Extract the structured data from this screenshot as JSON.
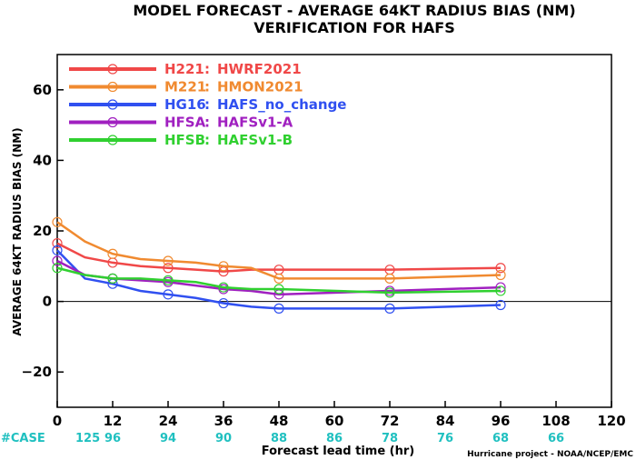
{
  "chart_data": {
    "type": "line",
    "title": "MODEL FORECAST - AVERAGE 64KT RADIUS BIAS (NM)",
    "subtitle": "VERIFICATION FOR HAFS",
    "xlabel": "Forecast lead time (hr)",
    "ylabel": "AVERAGE 64KT RADIUS BIAS (NM)",
    "xlim": [
      0,
      120
    ],
    "ylim": [
      -30,
      70
    ],
    "x_ticks": [
      "0",
      "12",
      "24",
      "36",
      "48",
      "60",
      "72",
      "84",
      "96",
      "108",
      "120"
    ],
    "x_tick_values": [
      0,
      12,
      24,
      36,
      48,
      60,
      72,
      84,
      96,
      108,
      120
    ],
    "y_ticks": [
      "60",
      "40",
      "20",
      "0",
      "−20"
    ],
    "y_tick_values": [
      60,
      40,
      20,
      0,
      -20
    ],
    "zero_line": true,
    "grid": false,
    "legend_position": "top-left",
    "case_label": "#CASE",
    "case_counts": [
      {
        "x": 0,
        "label": "125"
      },
      {
        "x": 12,
        "label": "96"
      },
      {
        "x": 24,
        "label": "94"
      },
      {
        "x": 36,
        "label": "90"
      },
      {
        "x": 48,
        "label": "88"
      },
      {
        "x": 60,
        "label": "86"
      },
      {
        "x": 72,
        "label": "78"
      },
      {
        "x": 84,
        "label": "76"
      },
      {
        "x": 96,
        "label": "68"
      },
      {
        "x": 108,
        "label": "66"
      }
    ],
    "credit": "Hurricane project - NOAA/NCEP/EMC",
    "series": [
      {
        "name": "H221",
        "desc": "HWRF2021",
        "color": "#f04848",
        "x": [
          0,
          6,
          12,
          18,
          24,
          30,
          36,
          42,
          48,
          72,
          96
        ],
        "y": [
          16.5,
          12.5,
          11,
          10,
          9.5,
          9,
          8.5,
          9,
          9,
          9,
          9.5
        ]
      },
      {
        "name": "M221",
        "desc": "HMON2021",
        "color": "#f08a30",
        "x": [
          0,
          6,
          12,
          18,
          24,
          30,
          36,
          42,
          48,
          72,
          96
        ],
        "y": [
          22.5,
          17,
          13.5,
          12,
          11.5,
          11,
          10,
          9.5,
          6.5,
          6.5,
          7.5
        ]
      },
      {
        "name": "HG16",
        "desc": "HAFS_no_change",
        "color": "#3050f0",
        "x": [
          0,
          6,
          12,
          18,
          24,
          30,
          36,
          42,
          48,
          72,
          96
        ],
        "y": [
          14.5,
          6.5,
          5,
          3,
          2,
          1,
          -0.5,
          -1.5,
          -2,
          -2,
          -1
        ]
      },
      {
        "name": "HFSA",
        "desc": "HAFSv1-A",
        "color": "#a020c0",
        "x": [
          0,
          6,
          12,
          18,
          24,
          30,
          36,
          42,
          48,
          72,
          96
        ],
        "y": [
          11.5,
          7.5,
          6.5,
          6,
          5.5,
          4.5,
          3.5,
          3,
          2,
          3,
          4
        ]
      },
      {
        "name": "HFSB",
        "desc": "HAFSv1-B",
        "color": "#30d030",
        "x": [
          0,
          6,
          12,
          18,
          24,
          30,
          36,
          42,
          48,
          72,
          96
        ],
        "y": [
          9.5,
          7.5,
          6.5,
          6.5,
          6,
          5.5,
          4,
          3.5,
          3.5,
          2.5,
          3
        ]
      }
    ]
  }
}
